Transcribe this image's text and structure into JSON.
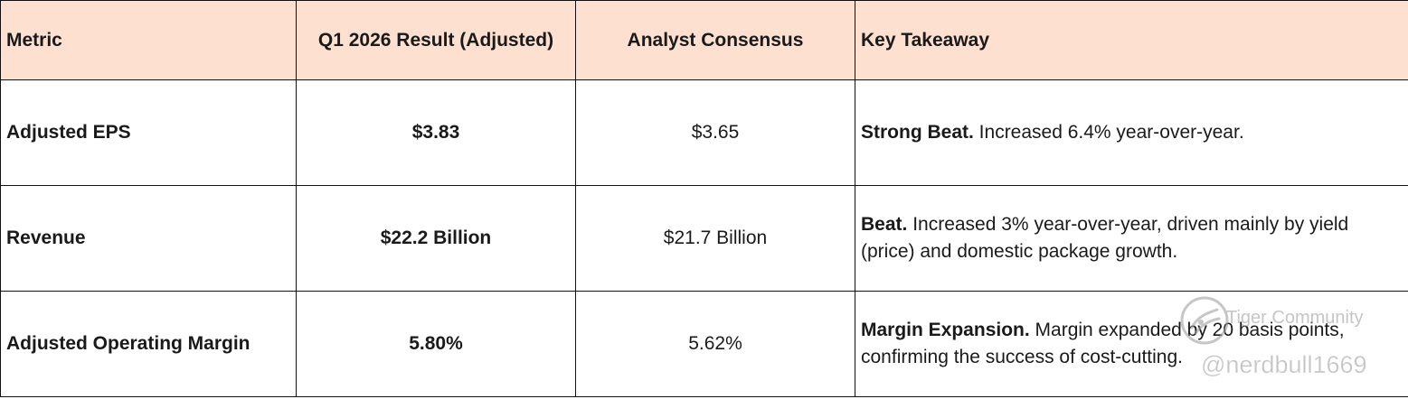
{
  "table": {
    "headers": [
      "Metric",
      "Q1 2026 Result (Adjusted)",
      "Analyst Consensus",
      "Key Takeaway"
    ],
    "rows": [
      {
        "metric": "Adjusted EPS",
        "result": "$3.83",
        "consensus": "$3.65",
        "takeaway_bold": "Strong Beat.",
        "takeaway_text": " Increased 6.4% year-over-year."
      },
      {
        "metric": "Revenue",
        "result": "$22.2 Billion",
        "consensus": "$21.7 Billion",
        "takeaway_bold": "Beat.",
        "takeaway_text": " Increased 3% year-over-year, driven mainly by yield (price) and domestic package growth."
      },
      {
        "metric": "Adjusted Operating Margin",
        "result": "5.80%",
        "consensus": "5.62%",
        "takeaway_bold": "Margin Expansion.",
        "takeaway_text": " Margin expanded by 20 basis points, confirming the success of cost-cutting."
      }
    ]
  },
  "watermark": {
    "brand": "Tiger Community",
    "handle": "@nerdbull1669",
    "logo_icon": "tiger-logo-icon"
  },
  "colors": {
    "header_background": "#fde0d0",
    "border": "#111111",
    "text": "#1a1a1a"
  }
}
